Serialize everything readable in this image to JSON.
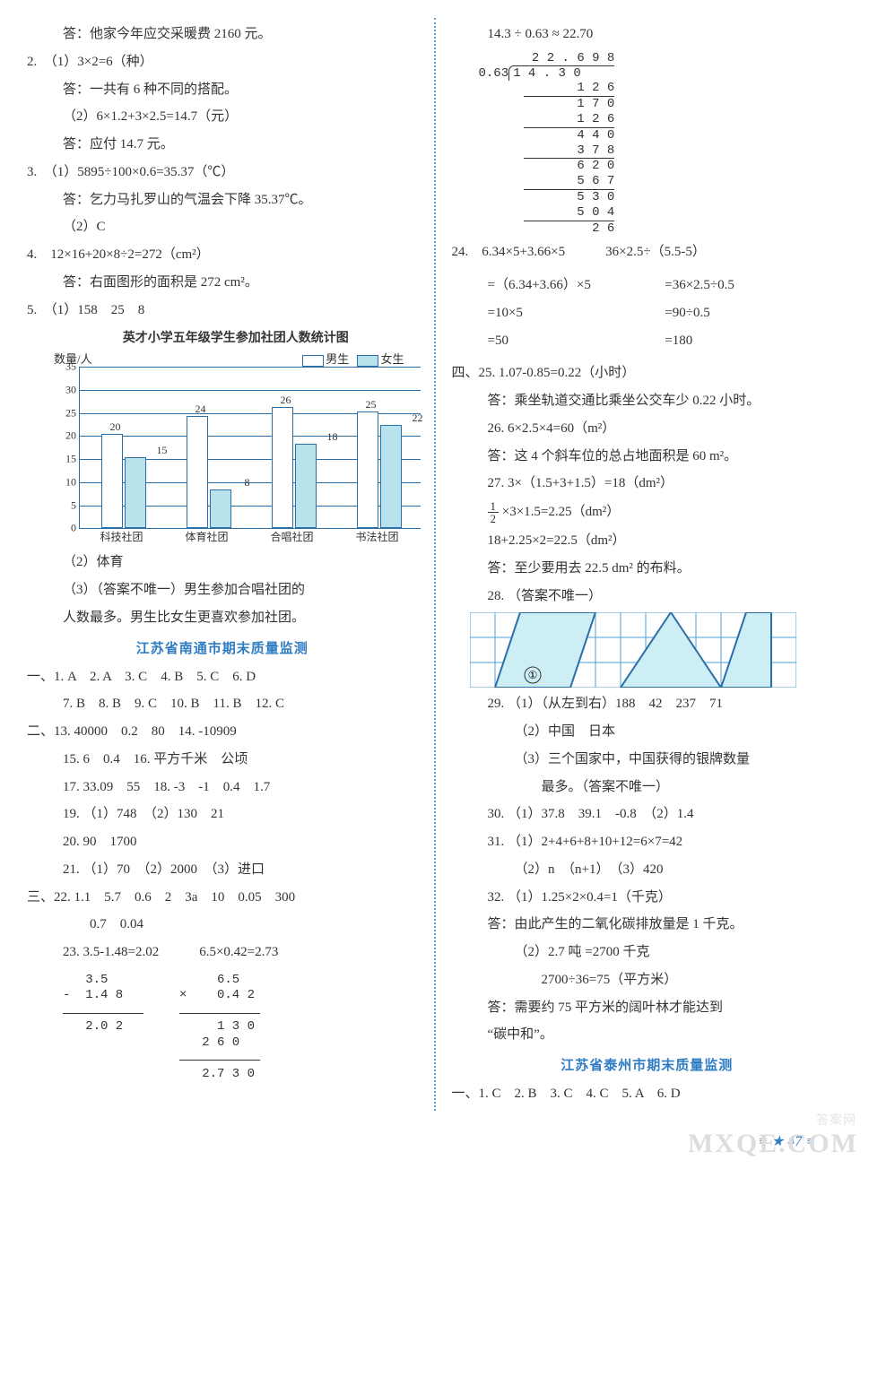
{
  "colors": {
    "accent": "#2f7cc3",
    "grid": "#2a6fa8",
    "bar_fill_f": "#b9e3ec",
    "bg": "#ffffff",
    "text": "#333333",
    "watermark": "#dddddd"
  },
  "left": {
    "l1": "答：他家今年应交采暖费 2160 元。",
    "q2_1": "2.　（1）3×2=6（种）",
    "q2_1a": "答：一共有 6 种不同的搭配。",
    "q2_2": "（2）6×1.2+3×2.5=14.7（元）",
    "q2_2a": "答：应付 14.7 元。",
    "q3_1": "3.　（1）5895÷100×0.6=35.37（℃）",
    "q3_1a": "答：乞力马扎罗山的气温会下降 35.37℃。",
    "q3_2": "（2）C",
    "q4": "4.　12×16+20×8÷2=272（cm²）",
    "q4a": "答：右面图形的面积是 272 cm²。",
    "q5": "5.　（1）158　25　8",
    "chart": {
      "title": "英才小学五年级学生参加社团人数统计图",
      "ylabel": "数量/人",
      "legend_m": "男生",
      "legend_f": "女生",
      "ymax": 35,
      "ystep": 5,
      "yticks": [
        0,
        5,
        10,
        15,
        20,
        25,
        30,
        35
      ],
      "categories": [
        "科技社团",
        "体育社团",
        "合唱社团",
        "书法社团"
      ],
      "m": [
        20,
        24,
        26,
        25
      ],
      "f": [
        15,
        8,
        18,
        22
      ],
      "bar_color_m": "#ffffff",
      "bar_color_f": "#b9e3ec",
      "border": "#2a6fa8"
    },
    "q5_2": "（2）体育",
    "q5_3a": "（3）（答案不唯一）男生参加合唱社团的",
    "q5_3b": "人数最多。男生比女生更喜欢参加社团。",
    "title_nt": "江苏省南通市期末质量监测",
    "s1a": "一、1.  A　2.  A　3.  C　4.  B　5.  C　6.  D",
    "s1b": "7.  B　8.  B　9.  C　10.  B　11.  B　12.  C",
    "s2_13": "二、13.  40000　0.2　80　14.  -10909",
    "s2_15": "15.  6　0.4　16.  平方千米　公顷",
    "s2_17": "17.  33.09　55　18.  -3　-1　0.4　1.7",
    "s2_19": "19.  （1）748　（2）130　21",
    "s2_20": "20.  90　1700",
    "s2_21": "21.  （1）70　（2）2000　（3）进口",
    "s3_22a": "三、22.  1.1　5.7　0.6　2　3a　10　0.05　300",
    "s3_22b": "0.7　0.04",
    "s3_23h": "23.  3.5-1.48=2.02　　　6.5×0.42=2.73",
    "calc_sub": "   3.5\n-  1.4 8\n————————\n   2.0 2",
    "calc_mul": "     6.5\n×    0.4 2\n——————————\n     1 3 0\n   2 6 0\n——————————\n   2.7 3 0"
  },
  "right": {
    "ldiv_title": "14.3 ÷ 0.63 ≈ 22.70",
    "ldiv": {
      "divisor": "0.63",
      "dividend": "14.30",
      "quotient": "22.698",
      "rows": [
        "1 2 6",
        " 1 7 0",
        " 1 2 6",
        "  4 4 0",
        "  3 7 8",
        "   6 2 0",
        "   5 6 7",
        "    5 3 0",
        "    5 0 4",
        "     2 6"
      ]
    },
    "q24h": "24.　6.34×5+3.66×5　　　36×2.5÷（5.5-5）",
    "q24l": {
      "a1": "=（6.34+3.66）×5",
      "b1": "=36×2.5÷0.5",
      "a2": "=10×5",
      "b2": "=90÷0.5",
      "a3": "=50",
      "b3": "=180"
    },
    "s4_25a": "四、25.  1.07-0.85=0.22（小时）",
    "s4_25b": "答：乘坐轨道交通比乘坐公交车少 0.22 小时。",
    "s4_26a": "26.  6×2.5×4=60（m²）",
    "s4_26b": "答：这 4 个斜车位的总占地面积是 60 m²。",
    "s4_27a": "27.  3×（1.5+3+1.5）=18（dm²）",
    "s4_27b_pref": "",
    "s4_27b": " ×3×1.5=2.25（dm²）",
    "s4_27c": "18+2.25×2=22.5（dm²）",
    "s4_27d": "答：至少要用去 22.5 dm² 的布料。",
    "s4_28": "28.  （答案不唯一）",
    "grid_fig": {
      "cols": 13,
      "rows": 3,
      "cell": 28,
      "grid_color": "#4aa0d8",
      "fill": "#cdeef4",
      "circle_label": "①"
    },
    "s4_29a": "29.  （1）（从左到右）188　42　237　71",
    "s4_29b": "（2）中国　日本",
    "s4_29c": "（3）三个国家中，中国获得的银牌数量",
    "s4_29d": "最多。（答案不唯一）",
    "s4_30": "30.  （1）37.8　39.1　-0.8　（2）1.4",
    "s4_31a": "31.  （1）2+4+6+8+10+12=6×7=42",
    "s4_31b": "（2）n　（n+1）　（3）420",
    "s4_32a": "32.  （1）1.25×2×0.4=1（千克）",
    "s4_32b": "答：由此产生的二氧化碳排放量是 1 千克。",
    "s4_32c": "（2）2.7 吨 =2700 千克",
    "s4_32d": "2700÷36=75（平方米）",
    "s4_32e": "答：需要约 75 平方米的阔叶林才能达到",
    "s4_32f": "“碳中和”。",
    "title_tz": "江苏省泰州市期末质量监测",
    "tz1": "一、1.  C　2.  B　3.  C　4.  C　5.  A　6.  D"
  },
  "pagenum": "47",
  "wm1": "答案网",
  "wm2": "MXQE.COM"
}
